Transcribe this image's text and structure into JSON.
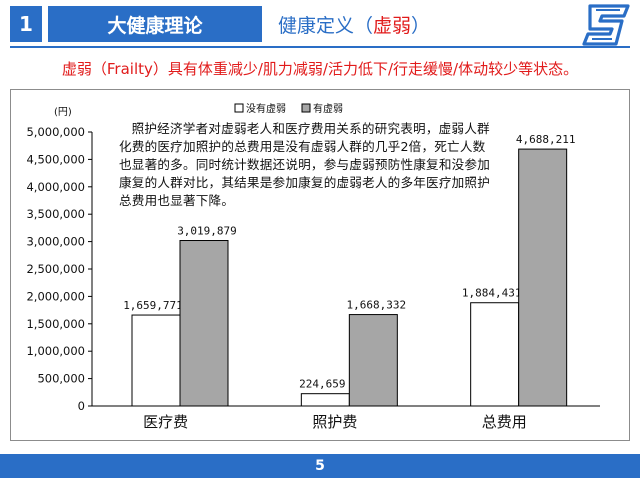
{
  "header": {
    "number": "1",
    "title": "大健康理论",
    "subtitle_prefix": "健康定义",
    "subtitle_paren_open": "（",
    "subtitle_highlight": "虚弱",
    "subtitle_paren_close": "）"
  },
  "definition": "虚弱（Frailty）具有体重减少/肌力减弱/活力低下/行走缓慢/体动较少等状态。",
  "note": "照护经济学者对虚弱老人和医疗费用关系的研究表明，虚弱人群化费的医疗加照护的总费用是没有虚弱人群的几乎2倍，死亡人数也显著的多。同时统计数据还说明，参与虚弱预防性康复和没参加康复的人群对比，其结果是参加康复的虚弱老人的多年医疗加照护总费用也显著下降。",
  "footer": {
    "page": "5"
  },
  "colors": {
    "brand": "#2a6ec6",
    "accent_red": "#e11b1b",
    "bar_gray": "#a6a6a6",
    "bar_white": "#ffffff"
  },
  "chart_data": {
    "type": "bar",
    "unit_label": "(円)",
    "categories": [
      "医疗费",
      "照护费",
      "总费用"
    ],
    "series": [
      {
        "name": "没有虚弱",
        "values": [
          1659771,
          224659,
          1884431
        ],
        "labels": [
          "1,659,771",
          "224,659",
          "1,884,431"
        ]
      },
      {
        "name": "有虚弱",
        "values": [
          3019879,
          1668332,
          4688211
        ],
        "labels": [
          "3,019,879",
          "1,668,332",
          "4,688,211"
        ]
      }
    ],
    "ylim": [
      0,
      5000000
    ],
    "yticks": [
      "0",
      "500,000",
      "1,000,000",
      "1,500,000",
      "2,000,000",
      "2,500,000",
      "3,000,000",
      "3,500,000",
      "4,000,000",
      "4,500,000",
      "5,000,000"
    ],
    "legend_position": "top",
    "grid": false
  }
}
